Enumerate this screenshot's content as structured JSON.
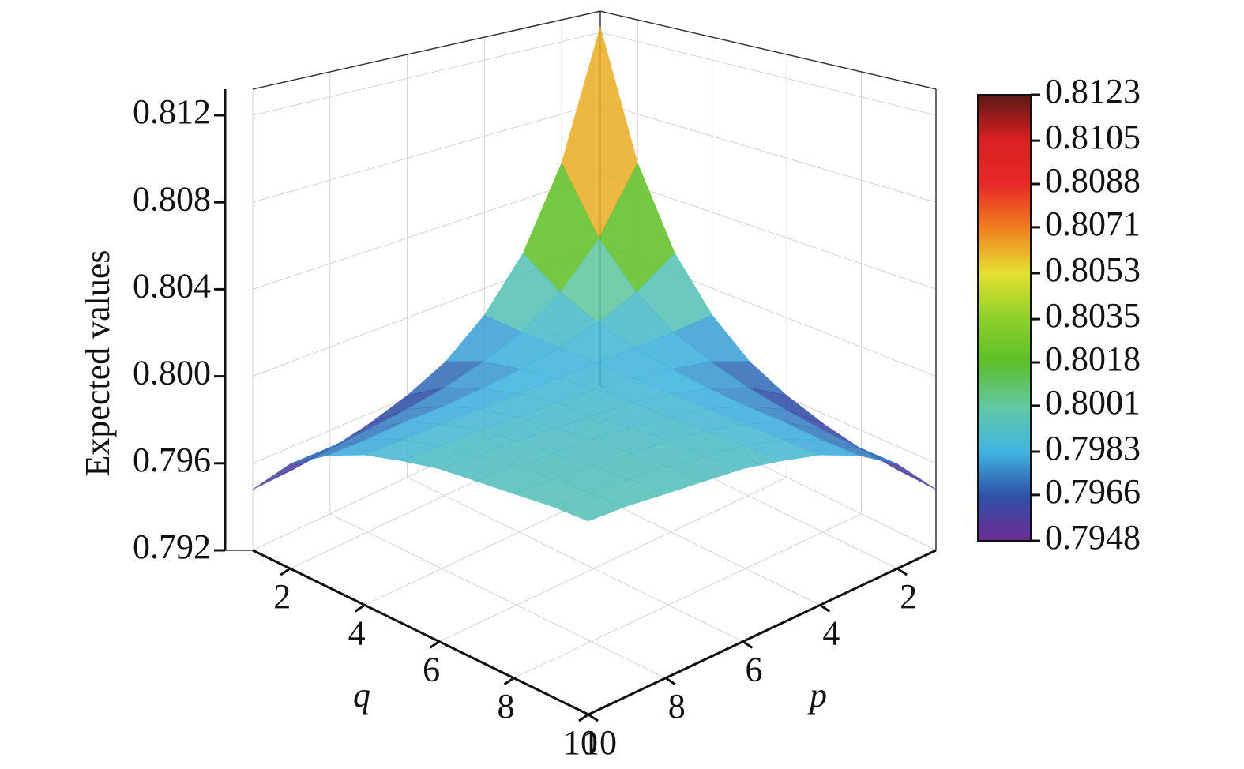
{
  "chart_data": {
    "type": "surface3d",
    "z_label": "Expected values",
    "q_label": "q",
    "p_label": "p",
    "p": [
      1,
      2,
      3,
      4,
      5,
      6,
      7,
      8,
      9,
      10
    ],
    "q": [
      1,
      2,
      3,
      4,
      5,
      6,
      7,
      8,
      9,
      10
    ],
    "z": [
      [
        0.8123,
        0.8053,
        0.8011,
        0.7986,
        0.797,
        0.7961,
        0.7955,
        0.7951,
        0.7949,
        0.7948
      ],
      [
        0.8053,
        0.8019,
        0.7998,
        0.7985,
        0.7978,
        0.7973,
        0.797,
        0.7968,
        0.7967,
        0.7967
      ],
      [
        0.8011,
        0.7998,
        0.799,
        0.7985,
        0.7982,
        0.798,
        0.7979,
        0.7979,
        0.7978,
        0.7978
      ],
      [
        0.7986,
        0.7985,
        0.7985,
        0.7985,
        0.7985,
        0.7985,
        0.7985,
        0.7985,
        0.7985,
        0.7985
      ],
      [
        0.797,
        0.7978,
        0.7982,
        0.7985,
        0.7987,
        0.7988,
        0.7988,
        0.7989,
        0.7989,
        0.7989
      ],
      [
        0.7961,
        0.7973,
        0.798,
        0.7985,
        0.7988,
        0.7989,
        0.799,
        0.7991,
        0.7991,
        0.7992
      ],
      [
        0.7955,
        0.797,
        0.7979,
        0.7985,
        0.7988,
        0.799,
        0.7992,
        0.7992,
        0.7993,
        0.7993
      ],
      [
        0.7951,
        0.7968,
        0.7979,
        0.7985,
        0.7989,
        0.7991,
        0.7992,
        0.7993,
        0.7994,
        0.7994
      ],
      [
        0.7949,
        0.7967,
        0.7978,
        0.7985,
        0.7989,
        0.7991,
        0.7993,
        0.7994,
        0.7994,
        0.7995
      ],
      [
        0.7948,
        0.7967,
        0.7978,
        0.7985,
        0.7989,
        0.7992,
        0.7993,
        0.7994,
        0.7995,
        0.7995
      ]
    ],
    "plim": [
      1,
      10
    ],
    "pticks": [
      2,
      4,
      6,
      8,
      10
    ],
    "qlim": [
      1,
      10
    ],
    "qticks": [
      2,
      4,
      6,
      8,
      10
    ],
    "zlim": [
      0.792,
      0.8132
    ],
    "zticks": [
      {
        "value": 0.792,
        "label": "0.792"
      },
      {
        "value": 0.796,
        "label": "0.796"
      },
      {
        "value": 0.8,
        "label": "0.800"
      },
      {
        "value": 0.804,
        "label": "0.804"
      },
      {
        "value": 0.808,
        "label": "0.808"
      },
      {
        "value": 0.812,
        "label": "0.812"
      }
    ],
    "clim": [
      0.7948,
      0.8123
    ],
    "cticks": [
      0.7948,
      0.7966,
      0.7983,
      0.8001,
      0.8018,
      0.8035,
      0.8053,
      0.8071,
      0.8088,
      0.8105,
      0.8123
    ],
    "colormap": [
      "#6a2c91",
      "#3050a8",
      "#40b4e0",
      "#62c8a4",
      "#5cbf2a",
      "#8fd02a",
      "#e4e030",
      "#f08020",
      "#e82828",
      "#d82020",
      "#5a1818"
    ],
    "grid": true
  }
}
